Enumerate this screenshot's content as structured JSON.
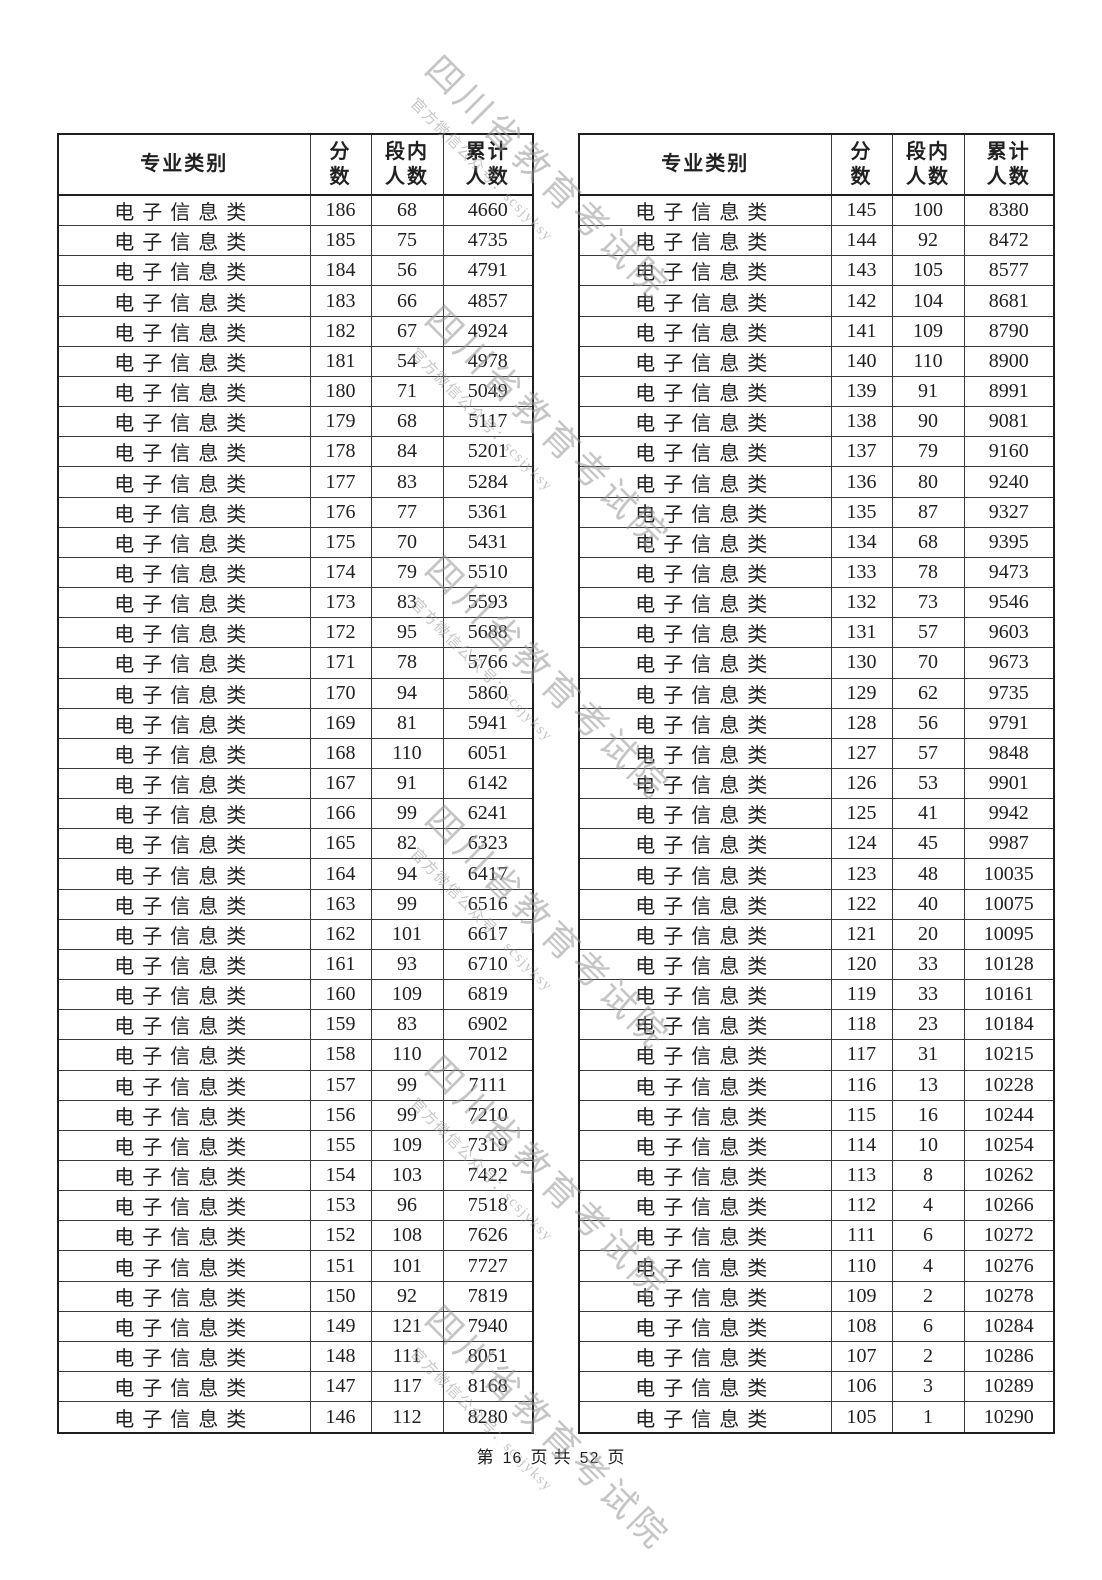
{
  "watermark": {
    "line1": "四川省教育考试院",
    "line2": "官方微信公众号：scsjyksy",
    "color": "#969696"
  },
  "footer": {
    "prefix": "第",
    "page_number": "16",
    "middle": "页 共",
    "total_pages": "52",
    "suffix": "页",
    "text": "第 16 页 共 52 页"
  },
  "columns": [
    {
      "id": "category",
      "lines": [
        "专业类别"
      ]
    },
    {
      "id": "score",
      "lines": [
        "分",
        "数"
      ]
    },
    {
      "id": "segment-count",
      "lines": [
        "段内",
        "人数"
      ]
    },
    {
      "id": "cumulative-count",
      "lines": [
        "累计",
        "人数"
      ]
    }
  ],
  "tables": [
    {
      "rows": [
        [
          "电子信息类",
          "186",
          "68",
          "4660"
        ],
        [
          "电子信息类",
          "185",
          "75",
          "4735"
        ],
        [
          "电子信息类",
          "184",
          "56",
          "4791"
        ],
        [
          "电子信息类",
          "183",
          "66",
          "4857"
        ],
        [
          "电子信息类",
          "182",
          "67",
          "4924"
        ],
        [
          "电子信息类",
          "181",
          "54",
          "4978"
        ],
        [
          "电子信息类",
          "180",
          "71",
          "5049"
        ],
        [
          "电子信息类",
          "179",
          "68",
          "5117"
        ],
        [
          "电子信息类",
          "178",
          "84",
          "5201"
        ],
        [
          "电子信息类",
          "177",
          "83",
          "5284"
        ],
        [
          "电子信息类",
          "176",
          "77",
          "5361"
        ],
        [
          "电子信息类",
          "175",
          "70",
          "5431"
        ],
        [
          "电子信息类",
          "174",
          "79",
          "5510"
        ],
        [
          "电子信息类",
          "173",
          "83",
          "5593"
        ],
        [
          "电子信息类",
          "172",
          "95",
          "5688"
        ],
        [
          "电子信息类",
          "171",
          "78",
          "5766"
        ],
        [
          "电子信息类",
          "170",
          "94",
          "5860"
        ],
        [
          "电子信息类",
          "169",
          "81",
          "5941"
        ],
        [
          "电子信息类",
          "168",
          "110",
          "6051"
        ],
        [
          "电子信息类",
          "167",
          "91",
          "6142"
        ],
        [
          "电子信息类",
          "166",
          "99",
          "6241"
        ],
        [
          "电子信息类",
          "165",
          "82",
          "6323"
        ],
        [
          "电子信息类",
          "164",
          "94",
          "6417"
        ],
        [
          "电子信息类",
          "163",
          "99",
          "6516"
        ],
        [
          "电子信息类",
          "162",
          "101",
          "6617"
        ],
        [
          "电子信息类",
          "161",
          "93",
          "6710"
        ],
        [
          "电子信息类",
          "160",
          "109",
          "6819"
        ],
        [
          "电子信息类",
          "159",
          "83",
          "6902"
        ],
        [
          "电子信息类",
          "158",
          "110",
          "7012"
        ],
        [
          "电子信息类",
          "157",
          "99",
          "7111"
        ],
        [
          "电子信息类",
          "156",
          "99",
          "7210"
        ],
        [
          "电子信息类",
          "155",
          "109",
          "7319"
        ],
        [
          "电子信息类",
          "154",
          "103",
          "7422"
        ],
        [
          "电子信息类",
          "153",
          "96",
          "7518"
        ],
        [
          "电子信息类",
          "152",
          "108",
          "7626"
        ],
        [
          "电子信息类",
          "151",
          "101",
          "7727"
        ],
        [
          "电子信息类",
          "150",
          "92",
          "7819"
        ],
        [
          "电子信息类",
          "149",
          "121",
          "7940"
        ],
        [
          "电子信息类",
          "148",
          "111",
          "8051"
        ],
        [
          "电子信息类",
          "147",
          "117",
          "8168"
        ],
        [
          "电子信息类",
          "146",
          "112",
          "8280"
        ]
      ]
    },
    {
      "rows": [
        [
          "电子信息类",
          "145",
          "100",
          "8380"
        ],
        [
          "电子信息类",
          "144",
          "92",
          "8472"
        ],
        [
          "电子信息类",
          "143",
          "105",
          "8577"
        ],
        [
          "电子信息类",
          "142",
          "104",
          "8681"
        ],
        [
          "电子信息类",
          "141",
          "109",
          "8790"
        ],
        [
          "电子信息类",
          "140",
          "110",
          "8900"
        ],
        [
          "电子信息类",
          "139",
          "91",
          "8991"
        ],
        [
          "电子信息类",
          "138",
          "90",
          "9081"
        ],
        [
          "电子信息类",
          "137",
          "79",
          "9160"
        ],
        [
          "电子信息类",
          "136",
          "80",
          "9240"
        ],
        [
          "电子信息类",
          "135",
          "87",
          "9327"
        ],
        [
          "电子信息类",
          "134",
          "68",
          "9395"
        ],
        [
          "电子信息类",
          "133",
          "78",
          "9473"
        ],
        [
          "电子信息类",
          "132",
          "73",
          "9546"
        ],
        [
          "电子信息类",
          "131",
          "57",
          "9603"
        ],
        [
          "电子信息类",
          "130",
          "70",
          "9673"
        ],
        [
          "电子信息类",
          "129",
          "62",
          "9735"
        ],
        [
          "电子信息类",
          "128",
          "56",
          "9791"
        ],
        [
          "电子信息类",
          "127",
          "57",
          "9848"
        ],
        [
          "电子信息类",
          "126",
          "53",
          "9901"
        ],
        [
          "电子信息类",
          "125",
          "41",
          "9942"
        ],
        [
          "电子信息类",
          "124",
          "45",
          "9987"
        ],
        [
          "电子信息类",
          "123",
          "48",
          "10035"
        ],
        [
          "电子信息类",
          "122",
          "40",
          "10075"
        ],
        [
          "电子信息类",
          "121",
          "20",
          "10095"
        ],
        [
          "电子信息类",
          "120",
          "33",
          "10128"
        ],
        [
          "电子信息类",
          "119",
          "33",
          "10161"
        ],
        [
          "电子信息类",
          "118",
          "23",
          "10184"
        ],
        [
          "电子信息类",
          "117",
          "31",
          "10215"
        ],
        [
          "电子信息类",
          "116",
          "13",
          "10228"
        ],
        [
          "电子信息类",
          "115",
          "16",
          "10244"
        ],
        [
          "电子信息类",
          "114",
          "10",
          "10254"
        ],
        [
          "电子信息类",
          "113",
          "8",
          "10262"
        ],
        [
          "电子信息类",
          "112",
          "4",
          "10266"
        ],
        [
          "电子信息类",
          "111",
          "6",
          "10272"
        ],
        [
          "电子信息类",
          "110",
          "4",
          "10276"
        ],
        [
          "电子信息类",
          "109",
          "2",
          "10278"
        ],
        [
          "电子信息类",
          "108",
          "6",
          "10284"
        ],
        [
          "电子信息类",
          "107",
          "2",
          "10286"
        ],
        [
          "电子信息类",
          "106",
          "3",
          "10289"
        ],
        [
          "电子信息类",
          "105",
          "1",
          "10290"
        ]
      ]
    }
  ]
}
